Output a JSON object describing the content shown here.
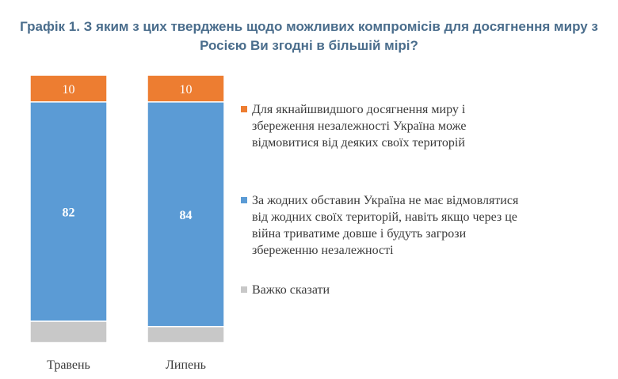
{
  "chart_data": {
    "type": "bar",
    "stacked": true,
    "title_lines": [
      "Графік 1. З яким з цих тверджень щодо можливих компромісів для досягнення миру з",
      "Росією Ви згодні в більшій мірі?"
    ],
    "categories": [
      "Травень",
      "Липень"
    ],
    "series": [
      {
        "name": "Важко сказати",
        "color": "#c8c8c8",
        "values": [
          8,
          6
        ],
        "labels": [
          "",
          ""
        ]
      },
      {
        "name": "За жодних обставин Україна не має відмовлятися від жодних своїх територій, навіть якщо через це війна триватиме довше і будуть загрози збереженню незалежності",
        "color": "#5b9bd5",
        "values": [
          82,
          84
        ],
        "labels": [
          "82",
          "84"
        ]
      },
      {
        "name": "Для якнайшвидшого досягнення миру і збереження незалежності Україна може відмовитися від деяких своїх територій",
        "color": "#ed7d31",
        "values": [
          10,
          10
        ],
        "labels": [
          "10",
          "10"
        ]
      }
    ],
    "legend": {
      "placement": "right",
      "order": [
        2,
        1,
        0
      ],
      "lines": [
        [
          "Для якнайшвидшого досягнення миру і",
          "збереження незалежності Україна може",
          "відмовитися від деяких своїх територій"
        ],
        [
          "За жодних обставин Україна не має відмовлятися",
          "від жодних своїх територій, навіть якщо через це",
          "війна триватиме довше і будуть загрози",
          "збереженню незалежності"
        ],
        [
          "Важко сказати"
        ]
      ]
    },
    "ylim": [
      0,
      100
    ],
    "grid": false,
    "xlabel": "",
    "ylabel": ""
  }
}
